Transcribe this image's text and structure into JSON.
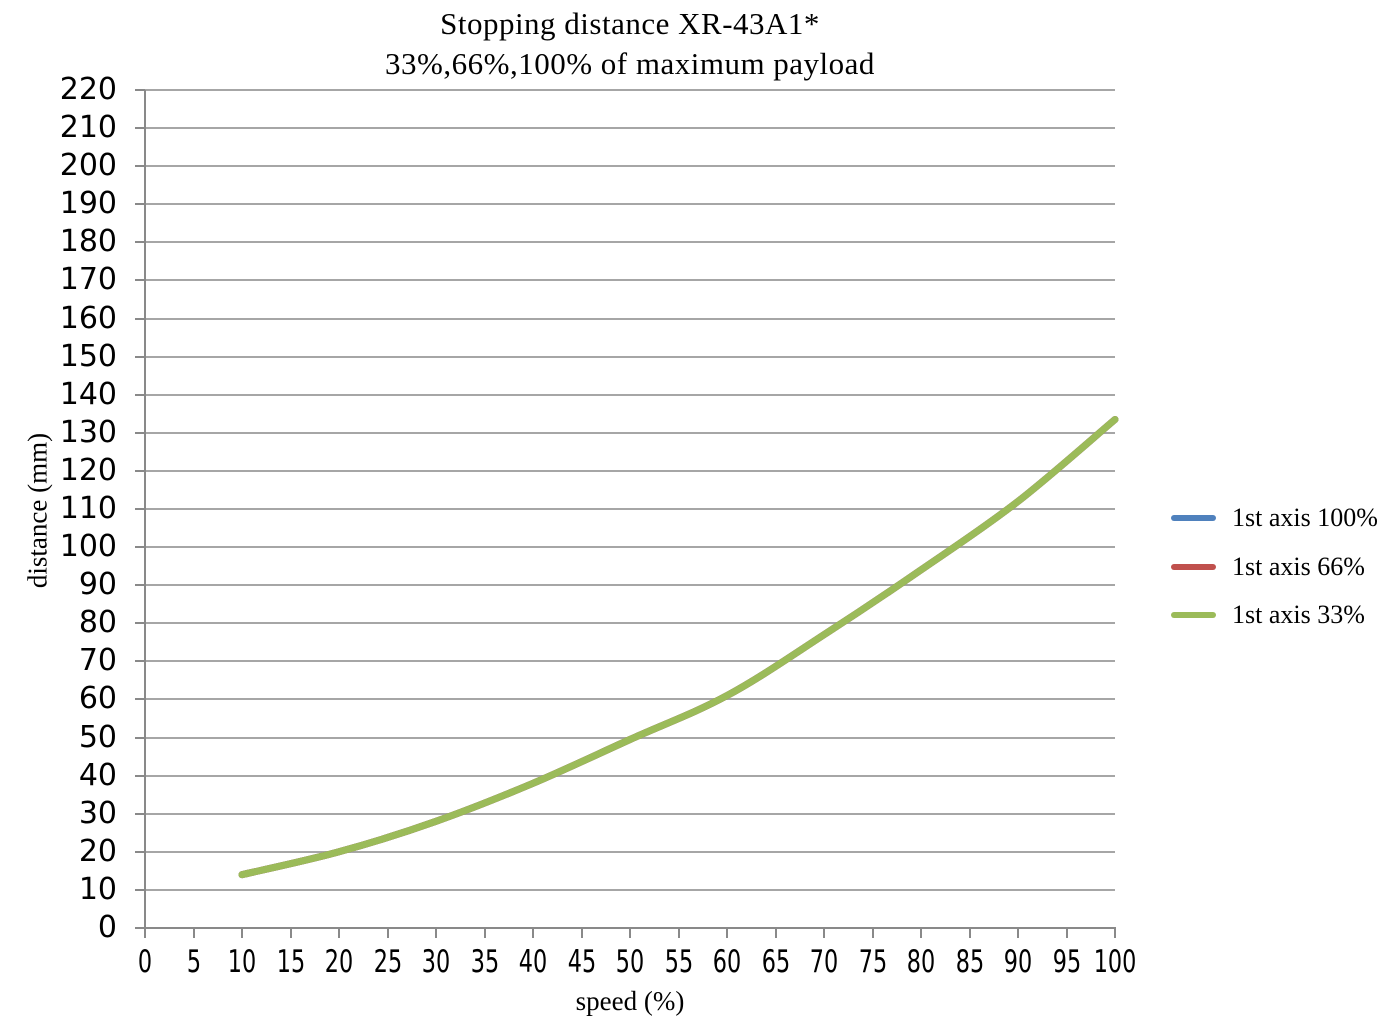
{
  "title": "Stopping distance  XR-43A1*",
  "subtitle": "33%,66%,100% of maximum payload",
  "chart_data": {
    "type": "line",
    "title": "Stopping distance  XR-43A1*",
    "subtitle": "33%,66%,100% of maximum payload",
    "xlabel": "speed (%)",
    "ylabel": "distance (mm)",
    "x": [
      10,
      20,
      30,
      40,
      50,
      60,
      70,
      80,
      90,
      100
    ],
    "series": [
      {
        "name": "1st axis 100%",
        "color": "#4f81bd",
        "values": [
          14,
          20,
          28,
          38,
          49.5,
          61,
          77,
          94,
          112,
          133.5
        ]
      },
      {
        "name": "1st axis 66%",
        "color": "#c0504d",
        "values": [
          14,
          20,
          28,
          38,
          49.5,
          61,
          77,
          94,
          112,
          133.5
        ]
      },
      {
        "name": "1st axis 33%",
        "color": "#9bbb59",
        "values": [
          14,
          20,
          28,
          38,
          49.5,
          61,
          77,
          94,
          112,
          133.5
        ]
      }
    ],
    "xlim": [
      0,
      100
    ],
    "ylim": [
      0,
      220
    ],
    "x_tick_step": 5,
    "y_tick_step": 10,
    "grid": "horizontal",
    "legend_position": "right"
  },
  "colors": {
    "gridline": "#a6a6a6",
    "axis": "#898989",
    "text": "#000000",
    "background": "#ffffff"
  }
}
